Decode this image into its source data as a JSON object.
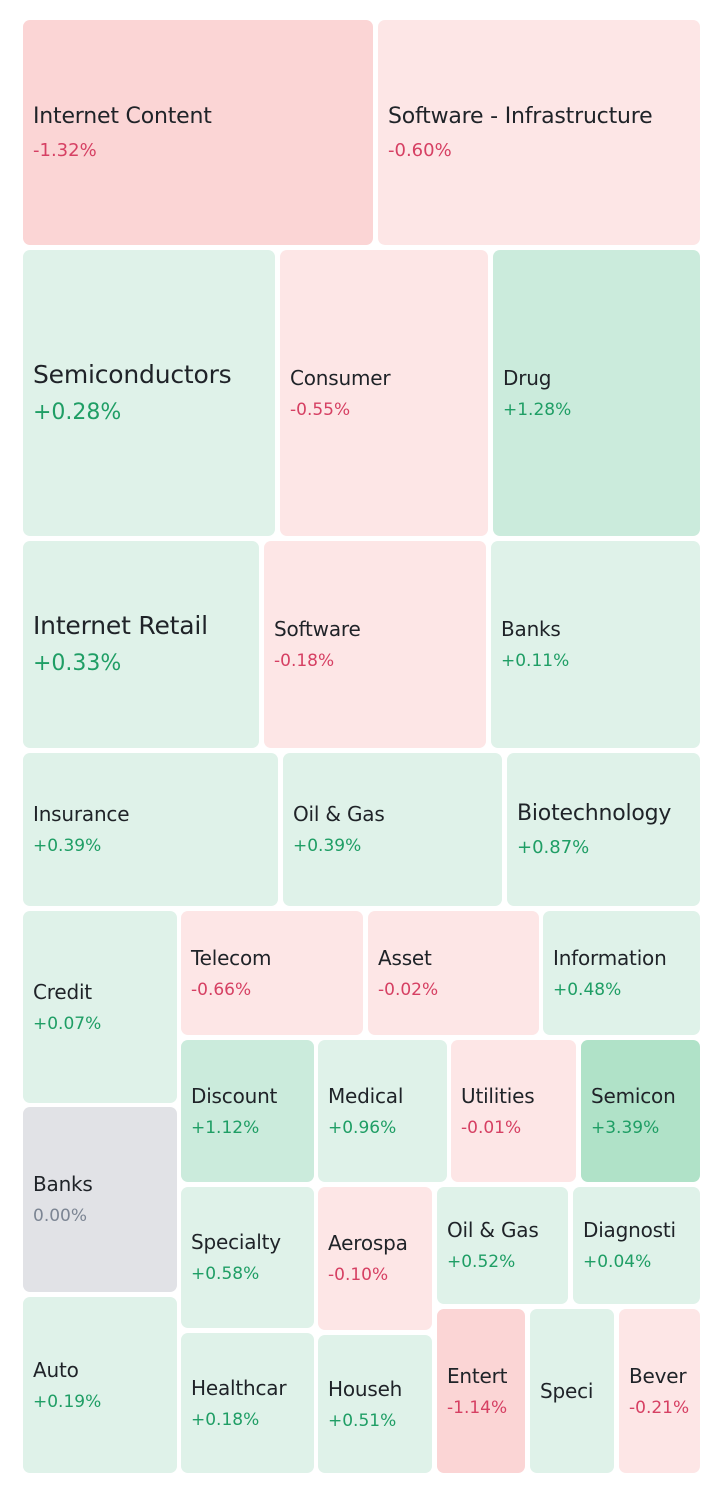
{
  "colors": {
    "neg_strong": "#fbd5d5",
    "neg_light": "#fde6e6",
    "pos_light": "#dff2e9",
    "pos_mid": "#cbebdc",
    "pos_strong": "#b0e2c8",
    "neutral": "#e1e2e6",
    "text_neg": "#d64063",
    "text_pos": "#1f9e65",
    "text_neutral": "#7c8593"
  },
  "chart_data": {
    "type": "treemap",
    "tiles": [
      {
        "name": "Internet Content",
        "change": "-1.32%",
        "value": -1.32
      },
      {
        "name": "Software - Infrastructure",
        "change": "-0.60%",
        "value": -0.6
      },
      {
        "name": "Semiconductors",
        "change": "+0.28%",
        "value": 0.28
      },
      {
        "name": "Consumer",
        "change": "-0.55%",
        "value": -0.55
      },
      {
        "name": "Drug",
        "change": "+1.28%",
        "value": 1.28
      },
      {
        "name": "Internet Retail",
        "change": "+0.33%",
        "value": 0.33
      },
      {
        "name": "Software",
        "change": "-0.18%",
        "value": -0.18
      },
      {
        "name": "Banks",
        "change": "+0.11%",
        "value": 0.11
      },
      {
        "name": "Insurance",
        "change": "+0.39%",
        "value": 0.39
      },
      {
        "name": "Oil & Gas",
        "change": "+0.39%",
        "value": 0.39
      },
      {
        "name": "Biotechnology",
        "change": "+0.87%",
        "value": 0.87
      },
      {
        "name": "Credit",
        "change": "+0.07%",
        "value": 0.07
      },
      {
        "name": "Telecom",
        "change": "-0.66%",
        "value": -0.66
      },
      {
        "name": "Asset",
        "change": "-0.02%",
        "value": -0.02
      },
      {
        "name": "Information",
        "change": "+0.48%",
        "value": 0.48
      },
      {
        "name": "Discount",
        "change": "+1.12%",
        "value": 1.12
      },
      {
        "name": "Medical",
        "change": "+0.96%",
        "value": 0.96
      },
      {
        "name": "Utilities",
        "change": "-0.01%",
        "value": -0.01
      },
      {
        "name": "Semicon",
        "change": "+3.39%",
        "value": 3.39
      },
      {
        "name": "Banks",
        "change": "0.00%",
        "value": 0.0
      },
      {
        "name": "Specialty",
        "change": "+0.58%",
        "value": 0.58
      },
      {
        "name": "Aerospa",
        "change": "-0.10%",
        "value": -0.1
      },
      {
        "name": "Oil & Gas",
        "change": "+0.52%",
        "value": 0.52
      },
      {
        "name": "Diagnosti",
        "change": "+0.04%",
        "value": 0.04
      },
      {
        "name": "Auto",
        "change": "+0.19%",
        "value": 0.19
      },
      {
        "name": "Healthcar",
        "change": "+0.18%",
        "value": 0.18
      },
      {
        "name": "Househ",
        "change": "+0.51%",
        "value": 0.51
      },
      {
        "name": "Entert",
        "change": "-1.14%",
        "value": -1.14
      },
      {
        "name": "Speci",
        "change": "",
        "value": null
      },
      {
        "name": "Bever",
        "change": "-0.21%",
        "value": -0.21
      }
    ]
  }
}
